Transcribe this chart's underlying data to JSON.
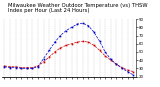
{
  "title": "Milwaukee Weather Outdoor Temperature (vs) THSW Index per Hour (Last 24 Hours)",
  "title_line2": "THSW Index per Hour",
  "hours": [
    0,
    1,
    2,
    3,
    4,
    5,
    6,
    7,
    8,
    9,
    10,
    11,
    12,
    13,
    14,
    15,
    16,
    17,
    18,
    19,
    20,
    21,
    22,
    23
  ],
  "temp": [
    33,
    32,
    32,
    31,
    31,
    31,
    33,
    38,
    44,
    50,
    55,
    58,
    60,
    62,
    63,
    62,
    58,
    52,
    45,
    40,
    35,
    31,
    28,
    26
  ],
  "thsw": [
    32,
    31,
    31,
    30,
    30,
    30,
    32,
    42,
    52,
    62,
    70,
    76,
    80,
    84,
    85,
    82,
    74,
    63,
    50,
    41,
    35,
    30,
    26,
    22
  ],
  "temp_color": "#cc0000",
  "thsw_color": "#0000cc",
  "bg_color": "#ffffff",
  "grid_color": "#888888",
  "ylim": [
    20,
    90
  ],
  "right_yticks": [
    20,
    30,
    40,
    50,
    60,
    70,
    80,
    90
  ],
  "right_ytick_labels": [
    "20",
    "30",
    "40",
    "50",
    "60",
    "70",
    "80",
    "90"
  ],
  "title_fontsize": 3.8,
  "marker_size": 1.2,
  "line_width": 0.5
}
